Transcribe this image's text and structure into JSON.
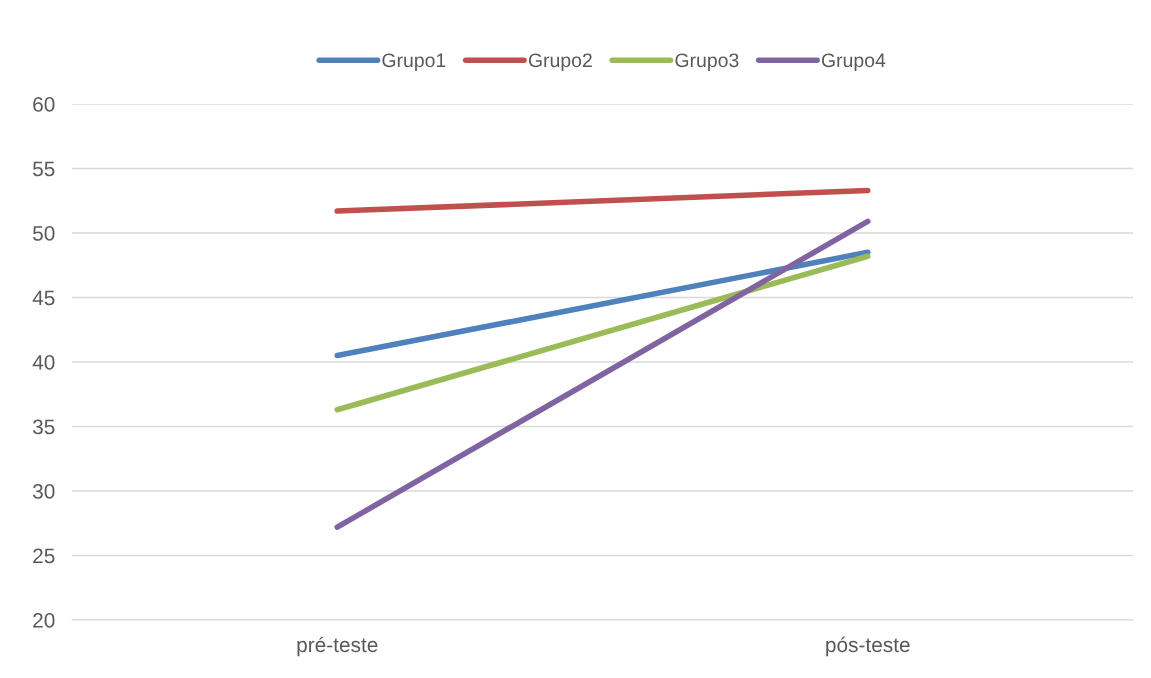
{
  "chart_data": {
    "type": "line",
    "categories": [
      "pré-teste",
      "pós-teste"
    ],
    "series": [
      {
        "name": "Grupo1",
        "color": "#4f81bd",
        "values": [
          40.5,
          48.5
        ]
      },
      {
        "name": "Grupo2",
        "color": "#c0504d",
        "values": [
          51.7,
          53.3
        ]
      },
      {
        "name": "Grupo3",
        "color": "#9bbb59",
        "values": [
          36.3,
          48.2
        ]
      },
      {
        "name": "Grupo4",
        "color": "#8064a2",
        "values": [
          27.2,
          50.9
        ]
      }
    ],
    "ylim": [
      20,
      60
    ],
    "yticks": [
      20,
      25,
      30,
      35,
      40,
      45,
      50,
      55,
      60
    ],
    "grid": "y",
    "legend": "top",
    "marker": "none",
    "line_style": "solid"
  }
}
